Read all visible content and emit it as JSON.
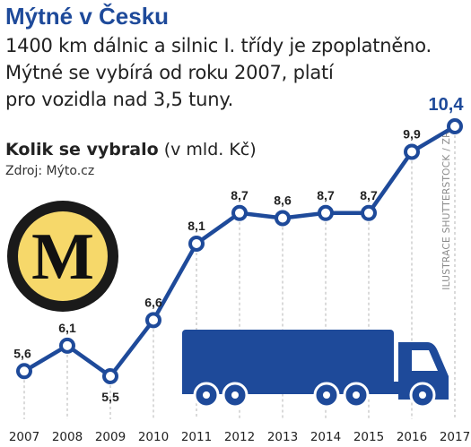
{
  "header": {
    "title": "Mýtné v Česku",
    "desc_line1": "1400 km dálnic a silnic I. třídy je zpoplatněno.",
    "desc_line2": "Mýtné se vybírá od roku 2007, platí",
    "desc_line3": "pro vozidla nad 3,5 tuny."
  },
  "chart_data": {
    "type": "line",
    "title": "Kolik se vybralo",
    "unit_note": "(v mld. Kč)",
    "source": "Zdroj: Mýto.cz",
    "x": [
      "2007",
      "2008",
      "2009",
      "2010",
      "2011",
      "2012",
      "2013",
      "2014",
      "2015",
      "2016",
      "2017"
    ],
    "series": [
      {
        "values": [
          5.6,
          6.1,
          5.5,
          6.6,
          8.1,
          8.7,
          8.6,
          8.7,
          8.7,
          9.9,
          10.4
        ],
        "labels": [
          "5,6",
          "6,1",
          "5,5",
          "6,6",
          "8,1",
          "8,7",
          "8,6",
          "8,7",
          "8,7",
          "9,9",
          "10,4"
        ]
      }
    ],
    "line_color": "#1e4a9a",
    "grid": "vertical dashed lines at each year",
    "legend": "none"
  },
  "decor": {
    "logo_letter": "M",
    "logo_color": "#f6d86a",
    "truck_color": "#1e4a9a",
    "credit": "ILUSTRACE SHUTTERSTOCK / ZR"
  }
}
